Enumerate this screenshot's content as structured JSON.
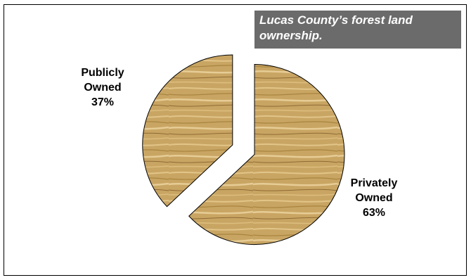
{
  "chart_data": {
    "type": "pie",
    "title": "Lucas County’s forest land ownership.",
    "slices": [
      {
        "label_lines": [
          "Publicly",
          "Owned",
          "37%"
        ],
        "category": "Publicly Owned",
        "value": 37
      },
      {
        "label_lines": [
          "Privately",
          "Owned",
          "63%"
        ],
        "category": "Privately Owned",
        "value": 63
      }
    ],
    "exploded": true,
    "fill": "wood-grain texture",
    "colors": {
      "wood_base": "#c9a563",
      "wood_light": "#e2c589",
      "wood_dark": "#8e6a35",
      "title_background": "#6b6b6b",
      "title_text": "#ffffff"
    },
    "legend": "none"
  }
}
